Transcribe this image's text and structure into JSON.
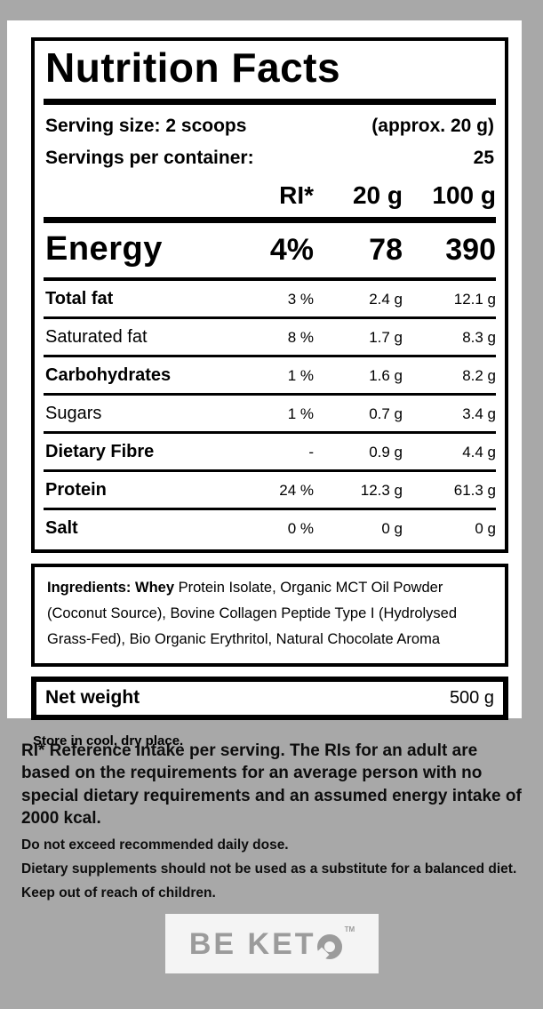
{
  "colors": {
    "background": "#a8a8a8",
    "card": "#ffffff",
    "ink": "#000000",
    "logo_gray": "#9b9b9b",
    "logo_box": "#f4f4f4"
  },
  "label": {
    "title": "Nutrition Facts",
    "serving_size_label": "Serving size: 2 scoops",
    "serving_size_value": "(approx. 20 g)",
    "servings_label": "Servings per container:",
    "servings_value": "25",
    "columns": {
      "ri": "RI*",
      "per_serving": "20 g",
      "per_100": "100 g"
    },
    "energy": {
      "label": "Energy",
      "ri": "4%",
      "per_serving": "78",
      "per_100": "390"
    },
    "rows": [
      {
        "label": "Total fat",
        "ri": "3 %",
        "per_serving": "2.4 g",
        "per_100": "12.1 g"
      },
      {
        "label": "Saturated fat",
        "ri": "8 %",
        "per_serving": "1.7 g",
        "per_100": "8.3 g"
      },
      {
        "label": "Carbohydrates",
        "ri": "1 %",
        "per_serving": "1.6 g",
        "per_100": "8.2 g"
      },
      {
        "label": "Sugars",
        "ri": "1 %",
        "per_serving": "0.7 g",
        "per_100": "3.4 g"
      },
      {
        "label": "Dietary Fibre",
        "ri": "-",
        "per_serving": "0.9 g",
        "per_100": "4.4 g"
      },
      {
        "label": "Protein",
        "ri": "24 %",
        "per_serving": "12.3 g",
        "per_100": "61.3 g"
      },
      {
        "label": "Salt",
        "ri": "0 %",
        "per_serving": "0 g",
        "per_100": "0 g"
      }
    ]
  },
  "ingredients": {
    "lead": "Ingredients: Whey",
    "rest": " Protein Isolate, Organic MCT Oil Powder (Coconut Source), Bovine Collagen Peptide Type I (Hydrolysed Grass-Fed), Bio Organic Erythritol, Natural Chocolate Aroma"
  },
  "net_weight": {
    "label": "Net weight",
    "value": "500 g"
  },
  "storage_note": "Store in cool, dry place.",
  "footnotes": {
    "ri_note": "RI* Reference Intake per serving. The RIs for an adult are based on the requirements for an average person with no special dietary requirements and an assumed energy intake of 2000 kcal.",
    "notes": [
      "Do not exceed recommended daily dose.",
      "Dietary supplements should not be used as a substitute for a balanced diet.",
      "Keep out of reach of children."
    ]
  },
  "brand": {
    "name": "BE KETO",
    "display_prefix": "BE KET",
    "tm": "TM"
  }
}
